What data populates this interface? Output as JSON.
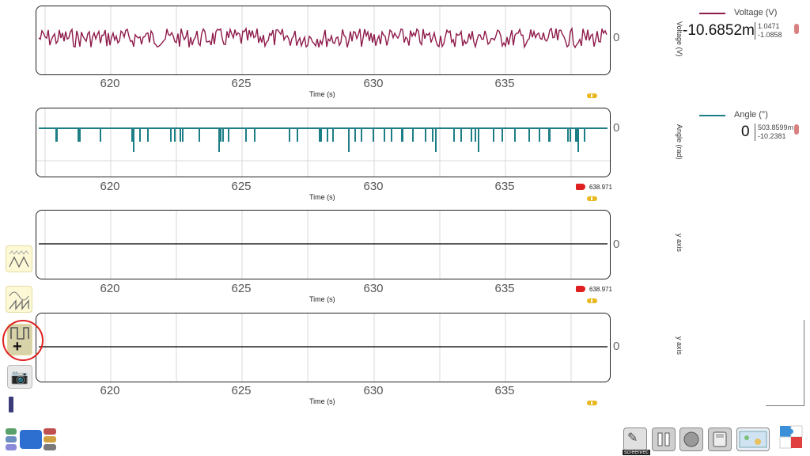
{
  "x_axis": {
    "ticks": [
      "620",
      "625",
      "630",
      "635"
    ],
    "label": "Time (s)"
  },
  "zero_label": "0",
  "graphs": [
    {
      "ylabel": "Voltage (V)",
      "legend_name": "Voltage (V)",
      "color": "#8e1b4b",
      "current_value": "-10.6852m",
      "max": "1.0471",
      "min": "-1.0858"
    },
    {
      "ylabel": "Angle (rad)",
      "legend_name": "Angle (°)",
      "color": "#1e7e86",
      "current_value": "0",
      "max": "503.8599m",
      "min": "-10.2381",
      "cursor_value": "638.971"
    },
    {
      "ylabel": "y axis",
      "color": "#222222",
      "cursor_value": "638.971"
    },
    {
      "ylabel": "y axis",
      "color": "#222222"
    }
  ],
  "toolbar": {
    "add_graph_symbol": "+",
    "screenrec_label": "screenrec"
  }
}
